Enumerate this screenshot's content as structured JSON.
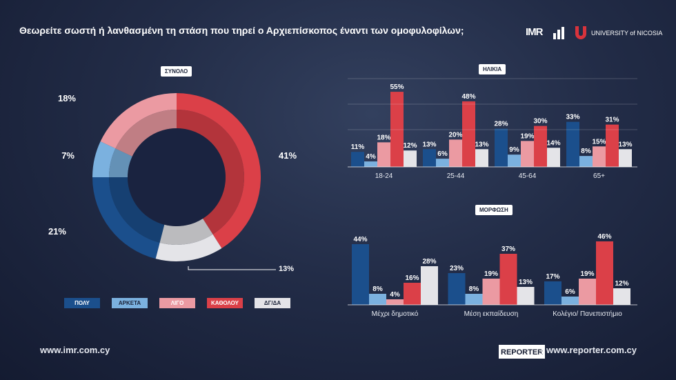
{
  "title": "Θεωρείτε σωστή ή λανθασμένη τη στάση που τηρεί ο Αρχιεπίσκοπος έναντι των ομοφυλοφίλων;",
  "logos": {
    "imr": "IMR",
    "university": "UNIVERSITY of NICOSIA",
    "reporter": "REPORTER"
  },
  "footer": {
    "left_url": "www.imr.com.cy",
    "right_url": "www.reporter.com.cy"
  },
  "legend": [
    {
      "label": "ΠΟΛΥ",
      "color": "#1b4f8c"
    },
    {
      "label": "ΑΡΚΕΤΑ",
      "color": "#7bb1df"
    },
    {
      "label": "ΛΙΓΟ",
      "color": "#eb9aa2"
    },
    {
      "label": "ΚΑΘΟΛΟΥ",
      "color": "#db4048"
    },
    {
      "label": "ΔΓ/ΔΑ",
      "color": "#e4e4e8"
    }
  ],
  "chart_data": [
    {
      "type": "pie",
      "title": "ΣΥΝΟΛΟ",
      "categories": [
        "ΠΟΛΥ",
        "ΑΡΚΕΤΑ",
        "ΛΙΓΟ",
        "ΚΑΘΟΛΟΥ",
        "ΔΓ/ΔΑ"
      ],
      "values": [
        21,
        7,
        18,
        41,
        13
      ],
      "value_labels": [
        "21%",
        "7%",
        "18%",
        "41%",
        "13%"
      ]
    },
    {
      "type": "bar",
      "title": "ΗΛΙΚΙΑ",
      "categories": [
        "18-24",
        "25-44",
        "45-64",
        "65+"
      ],
      "ylim": [
        0,
        60
      ],
      "series": [
        {
          "name": "ΠΟΛΥ",
          "values": [
            11,
            13,
            28,
            33
          ]
        },
        {
          "name": "ΑΡΚΕΤΑ",
          "values": [
            4,
            6,
            9,
            8
          ]
        },
        {
          "name": "ΛΙΓΟ",
          "values": [
            18,
            20,
            19,
            15
          ]
        },
        {
          "name": "ΚΑΘΟΛΟΥ",
          "values": [
            55,
            48,
            30,
            31
          ]
        },
        {
          "name": "ΔΓ/ΔΑ",
          "values": [
            12,
            13,
            14,
            13
          ]
        }
      ]
    },
    {
      "type": "bar",
      "title": "ΜΟΡΦΩΣΗ",
      "categories": [
        "Μέχρι δημοτικό",
        "Μέση εκπαίδευση",
        "Κολέγιο/ Πανεπιστήμιο"
      ],
      "ylim": [
        0,
        50
      ],
      "series": [
        {
          "name": "ΠΟΛΥ",
          "values": [
            44,
            23,
            17
          ]
        },
        {
          "name": "ΑΡΚΕΤΑ",
          "values": [
            8,
            8,
            6
          ]
        },
        {
          "name": "ΛΙΓΟ",
          "values": [
            4,
            19,
            19
          ]
        },
        {
          "name": "ΚΑΘΟΛΟΥ",
          "values": [
            16,
            37,
            46
          ]
        },
        {
          "name": "ΔΓ/ΔΑ",
          "values": [
            28,
            13,
            12
          ]
        }
      ]
    }
  ]
}
